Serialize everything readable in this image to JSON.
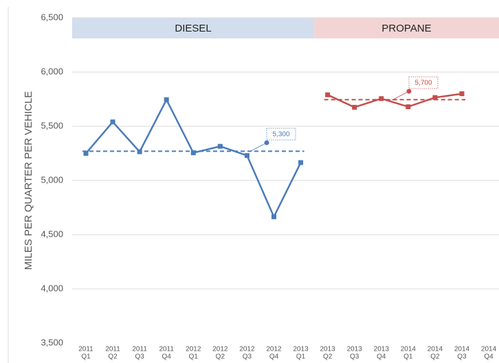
{
  "chart_data": {
    "type": "line",
    "y_axis_label": "MILES PER QUARTER PER VEHICLE",
    "groups": [
      {
        "name": "DIESEL",
        "color": "#d2deed",
        "from": 0,
        "to": 8
      },
      {
        "name": "PROPANE",
        "color": "#f3d4d4",
        "from": 9,
        "to": 15
      }
    ],
    "categories": [
      [
        "2011",
        "Q1"
      ],
      [
        "2011",
        "Q2"
      ],
      [
        "2011",
        "Q3"
      ],
      [
        "2011",
        "Q4"
      ],
      [
        "2012",
        "Q1"
      ],
      [
        "2012",
        "Q2"
      ],
      [
        "2012",
        "Q3"
      ],
      [
        "2012",
        "Q4"
      ],
      [
        "2013",
        "Q1"
      ],
      [
        "2013",
        "Q2"
      ],
      [
        "2013",
        "Q3"
      ],
      [
        "2013",
        "Q4"
      ],
      [
        "2014",
        "Q1"
      ],
      [
        "2014",
        "Q2"
      ],
      [
        "2014",
        "Q3"
      ],
      [
        "2014",
        "Q4"
      ]
    ],
    "series": [
      {
        "name": "Diesel",
        "color": "#4a7bbb",
        "average": 5270,
        "annotation": "5,300",
        "values": [
          5250,
          5540,
          5265,
          5745,
          5255,
          5315,
          5230,
          4665,
          5165,
          null,
          null,
          null,
          null,
          null,
          null,
          null
        ]
      },
      {
        "name": "Propane",
        "color": "#c44e4c",
        "average": 5745,
        "annotation": "5,700",
        "values": [
          null,
          null,
          null,
          null,
          null,
          null,
          null,
          null,
          null,
          5790,
          5675,
          5755,
          5680,
          5765,
          5800,
          null
        ]
      }
    ],
    "ylim": [
      3500,
      6500
    ],
    "yticks": [
      {
        "value": 3500,
        "label": "3,500"
      },
      {
        "value": 4000,
        "label": "4,000"
      },
      {
        "value": 4500,
        "label": "4,500"
      },
      {
        "value": 5000,
        "label": "5,000"
      },
      {
        "value": 5500,
        "label": "5,500"
      },
      {
        "value": 6000,
        "label": "6,000"
      },
      {
        "value": 6500,
        "label": "6,500"
      }
    ],
    "grid": true
  }
}
